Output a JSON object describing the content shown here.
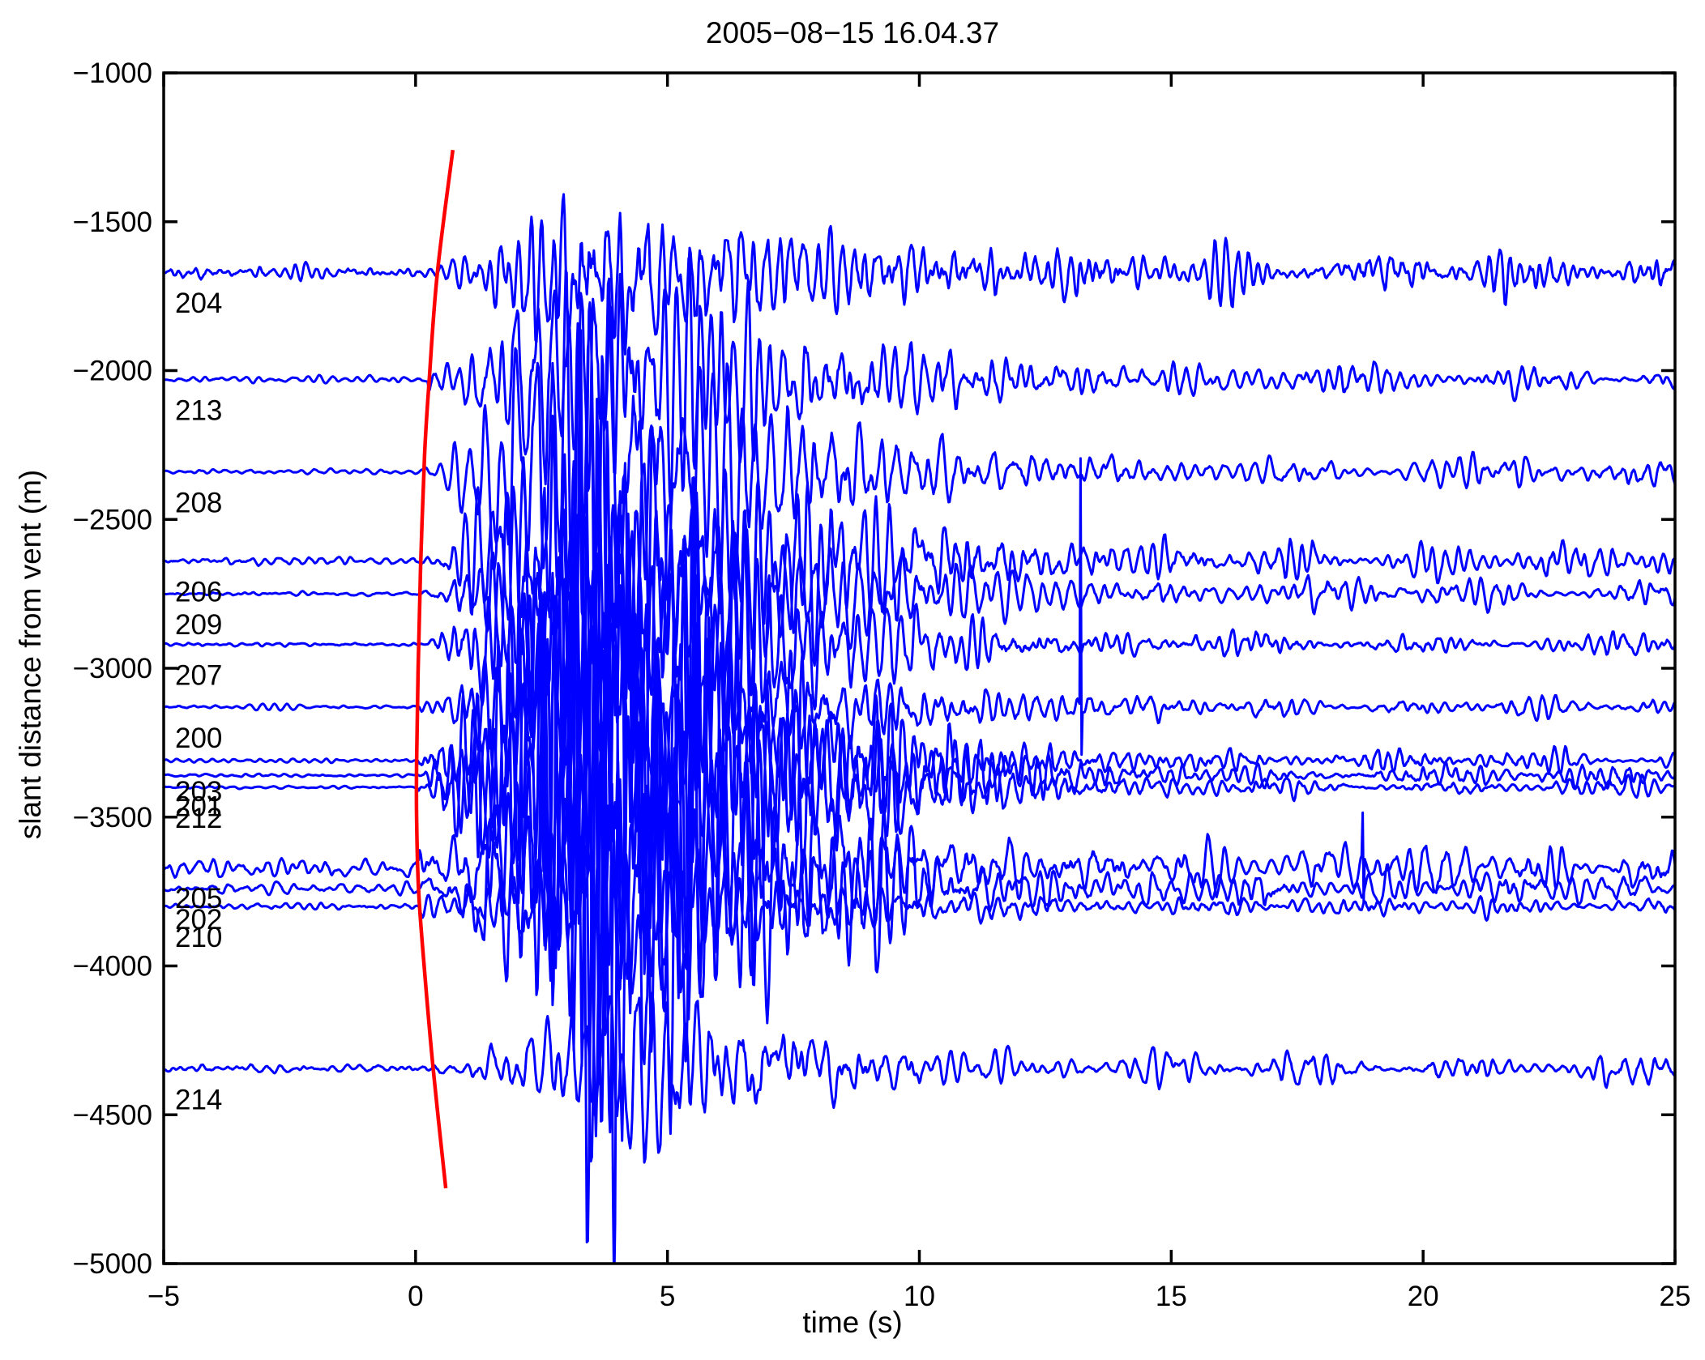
{
  "title": "2005−08−15 16.04.37",
  "axes": {
    "xlabel": "time (s)",
    "ylabel": "slant distance from vent (m)",
    "x_ticks": [
      -5,
      0,
      5,
      10,
      15,
      20,
      25
    ],
    "x_tick_labels": [
      "−5",
      "0",
      "5",
      "10",
      "15",
      "20",
      "25"
    ],
    "y_ticks": [
      -1000,
      -1500,
      -2000,
      -2500,
      -3000,
      -3500,
      -4000,
      -4500,
      -5000
    ],
    "y_tick_labels": [
      "−1000",
      "−1500",
      "−2000",
      "−2500",
      "−3000",
      "−3500",
      "−4000",
      "−4500",
      "−5000"
    ]
  },
  "colors": {
    "trace": "#0000ff",
    "arrival_curve": "#ff0000",
    "axis": "#000000",
    "background": "#ffffff",
    "text": "#000000"
  },
  "chart_data": {
    "type": "line",
    "title": "2005−08−15 16.04.37",
    "xlabel": "time (s)",
    "ylabel": "slant distance from vent (m)",
    "xlim": [
      -5,
      25
    ],
    "ylim": [
      -5000,
      -1000
    ],
    "grid": false,
    "legend": false,
    "stations": [
      {
        "id": "204",
        "distance_m": -1670,
        "onset_s": 0.4,
        "rise_s": 3.0,
        "peak_amp_m": 560,
        "noise_amp_m": 35,
        "coda_amp_m": 95,
        "freq_hz": 4.5,
        "decay_s": 5.5,
        "seed": 101,
        "spike": null
      },
      {
        "id": "213",
        "distance_m": -2030,
        "onset_s": 0.25,
        "rise_s": 3.0,
        "peak_amp_m": 800,
        "noise_amp_m": 15,
        "coda_amp_m": 60,
        "freq_hz": 3.8,
        "decay_s": 4.5,
        "seed": 202,
        "spike": null
      },
      {
        "id": "208",
        "distance_m": -2340,
        "onset_s": 0.2,
        "rise_s": 3.0,
        "peak_amp_m": 950,
        "noise_amp_m": 12,
        "coda_amp_m": 52,
        "freq_hz": 3.5,
        "decay_s": 4.0,
        "seed": 303,
        "spike": null
      },
      {
        "id": "206",
        "distance_m": -2640,
        "onset_s": 0.15,
        "rise_s": 3.2,
        "peak_amp_m": 1100,
        "noise_amp_m": 18,
        "coda_amp_m": 60,
        "freq_hz": 4.0,
        "decay_s": 4.0,
        "seed": 404,
        "spike": null
      },
      {
        "id": "209",
        "distance_m": -2750,
        "onset_s": 0.13,
        "rise_s": 3.2,
        "peak_amp_m": 950,
        "noise_amp_m": 12,
        "coda_amp_m": 55,
        "freq_hz": 3.6,
        "decay_s": 3.8,
        "seed": 505,
        "spike": null
      },
      {
        "id": "207",
        "distance_m": -2920,
        "onset_s": 0.1,
        "rise_s": 3.2,
        "peak_amp_m": 1100,
        "noise_amp_m": 10,
        "coda_amp_m": 45,
        "freq_hz": 4.2,
        "decay_s": 3.6,
        "seed": 606,
        "spike": null
      },
      {
        "id": "200",
        "distance_m": -3130,
        "onset_s": 0.08,
        "rise_s": 3.3,
        "peak_amp_m": 1200,
        "noise_amp_m": 12,
        "coda_amp_m": 50,
        "freq_hz": 3.9,
        "decay_s": 3.6,
        "seed": 707,
        "spike": {
          "t_s": 13.2,
          "up_m": 835,
          "down_m": 160
        }
      },
      {
        "id": "203",
        "distance_m": -3310,
        "onset_s": 0.06,
        "rise_s": 3.4,
        "peak_amp_m": 1600,
        "noise_amp_m": 8,
        "coda_amp_m": 40,
        "freq_hz": 4.4,
        "decay_s": 3.2,
        "seed": 808,
        "spike": null
      },
      {
        "id": "201",
        "distance_m": -3360,
        "onset_s": 0.06,
        "rise_s": 3.4,
        "peak_amp_m": 1900,
        "noise_amp_m": 7,
        "coda_amp_m": 35,
        "freq_hz": 4.1,
        "decay_s": 3.1,
        "seed": 909,
        "spike": null
      },
      {
        "id": "212",
        "distance_m": -3400,
        "onset_s": 0.06,
        "rise_s": 3.5,
        "peak_amp_m": 2000,
        "noise_amp_m": 7,
        "coda_amp_m": 40,
        "freq_hz": 3.7,
        "decay_s": 3.0,
        "seed": 111,
        "spike": null
      },
      {
        "id": "205",
        "distance_m": -3670,
        "onset_s": 0.08,
        "rise_s": 3.6,
        "peak_amp_m": 1350,
        "noise_amp_m": 45,
        "coda_amp_m": 90,
        "freq_hz": 3.3,
        "decay_s": 3.5,
        "seed": 222,
        "spike": {
          "t_s": 18.8,
          "up_m": 185,
          "down_m": 115
        }
      },
      {
        "id": "202",
        "distance_m": -3740,
        "onset_s": 0.09,
        "rise_s": 3.6,
        "peak_amp_m": 1500,
        "noise_amp_m": 30,
        "coda_amp_m": 70,
        "freq_hz": 3.5,
        "decay_s": 3.3,
        "seed": 333,
        "spike": null
      },
      {
        "id": "210",
        "distance_m": -3800,
        "onset_s": 0.1,
        "rise_s": 3.4,
        "peak_amp_m": 680,
        "noise_amp_m": 18,
        "coda_amp_m": 45,
        "freq_hz": 4.0,
        "decay_s": 3.8,
        "seed": 444,
        "spike": null
      },
      {
        "id": "214",
        "distance_m": -4345,
        "onset_s": 0.35,
        "rise_s": 4.2,
        "peak_amp_m": 550,
        "noise_amp_m": 25,
        "coda_amp_m": 60,
        "freq_hz": 3.6,
        "decay_s": 3.4,
        "seed": 555,
        "spike": null
      }
    ],
    "arrival_curve": {
      "color": "#ff0000",
      "points_t_d": [
        [
          0.74,
          -1259
        ],
        [
          0.43,
          -1675
        ],
        [
          0.27,
          -2034
        ],
        [
          0.18,
          -2279
        ],
        [
          0.1,
          -2660
        ],
        [
          0.05,
          -3014
        ],
        [
          0.02,
          -3313
        ],
        [
          0.02,
          -3503
        ],
        [
          0.06,
          -3748
        ],
        [
          0.18,
          -4020
        ],
        [
          0.35,
          -4347
        ],
        [
          0.6,
          -4747
        ]
      ]
    }
  }
}
